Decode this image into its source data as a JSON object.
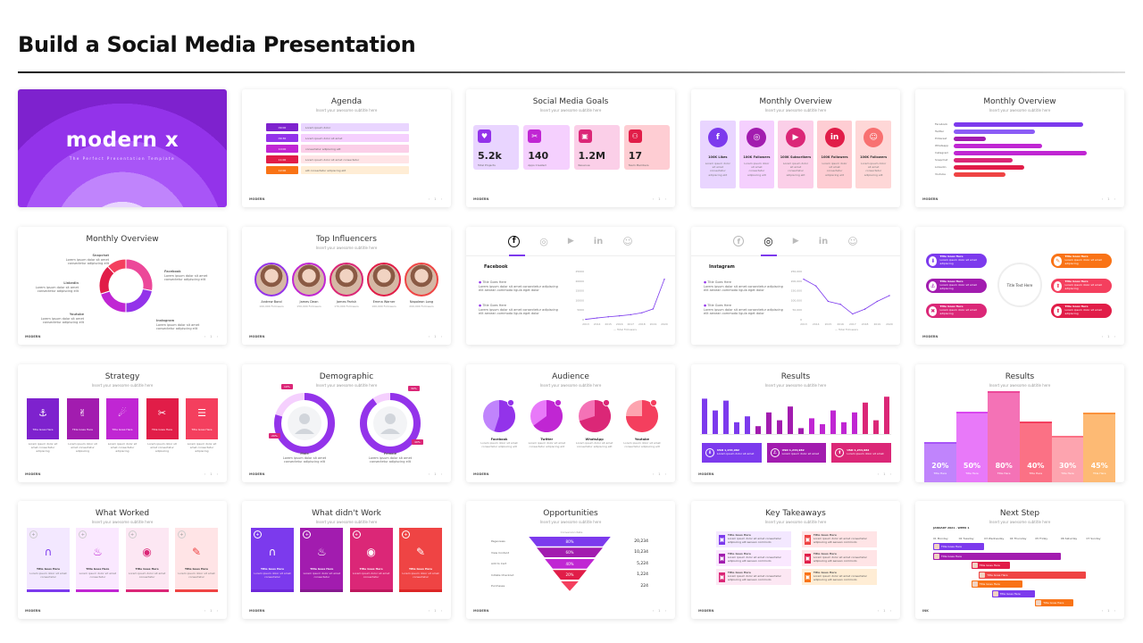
{
  "title": "Build a Social Media Presentation",
  "common": {
    "subtitle": "Insert your awesome subtitle here",
    "logo": "MODERN",
    "nav": "‹ 1 ›",
    "title_here": "Title Here",
    "title_goes_here": "Title Goes Here"
  },
  "s1": {
    "logo": "modern x",
    "tagline": "The Perfect Presentation Template"
  },
  "s2": {
    "title": "Agenda",
    "rows": [
      {
        "tag": "09:00",
        "text": "Lorem ipsum dolor"
      },
      {
        "tag": "09:30",
        "text": "Lorem ipsum dolor sit amet"
      },
      {
        "tag": "10:00",
        "text": "consectetur adipiscing elit"
      },
      {
        "tag": "11:00",
        "text": "Lorem ipsum dolor sit amet consectetur"
      },
      {
        "tag": "12:00",
        "text": "elit consectetur adipiscing elit"
      }
    ]
  },
  "s3": {
    "title": "Social Media Goals",
    "cards": [
      {
        "value": "5.2k",
        "label": "Total Projects",
        "icon": "heart-icon"
      },
      {
        "value": "140",
        "label": "Apps Created",
        "icon": "tools-icon"
      },
      {
        "value": "1.2M",
        "label": "Revenue",
        "icon": "bag-icon"
      },
      {
        "value": "17",
        "label": "Team Members",
        "icon": "team-icon"
      }
    ]
  },
  "s4": {
    "title": "Monthly Overview",
    "cols": [
      {
        "glyph": "f",
        "stat": "100K Likes",
        "icon": "facebook-icon"
      },
      {
        "glyph": "◎",
        "stat": "100K Followers",
        "icon": "instagram-icon"
      },
      {
        "glyph": "▶",
        "stat": "100K Subscribers",
        "icon": "youtube-icon"
      },
      {
        "glyph": "in",
        "stat": "100K Followers",
        "icon": "linkedin-icon"
      },
      {
        "glyph": "☺",
        "stat": "100K Followers",
        "icon": "snapchat-icon"
      }
    ],
    "desc": "Lorem ipsum dolor sit amet consectetur adipiscing elit"
  },
  "s5": {
    "title": "Monthly Overview",
    "bars": [
      {
        "label": "Facebook",
        "value": 0.88
      },
      {
        "label": "Twitter",
        "value": 0.55
      },
      {
        "label": "Pinterest",
        "value": 0.22
      },
      {
        "label": "Whatsapp",
        "value": 0.6
      },
      {
        "label": "Instagram",
        "value": 0.9
      },
      {
        "label": "Snapchat",
        "value": 0.4
      },
      {
        "label": "Linkedin",
        "value": 0.48
      },
      {
        "label": "Youtube",
        "value": 0.35
      }
    ]
  },
  "s6": {
    "title": "Monthly Overview",
    "labels": [
      "Snapchat",
      "Linkedin",
      "Youtube",
      "Facebook",
      "Instagram"
    ],
    "desc": "Lorem ipsum dolor sit amet consectetur adipiscing elit",
    "donut": [
      {
        "value": 28,
        "color": "#ec4899"
      },
      {
        "value": 22,
        "color": "#9333ea"
      },
      {
        "value": 20,
        "color": "#c026d3"
      },
      {
        "value": 18,
        "color": "#e11d48"
      },
      {
        "value": 12,
        "color": "#f43f5e"
      }
    ]
  },
  "s7": {
    "title": "Top Influencers",
    "people": [
      {
        "name": "Andrew Bond",
        "followers": "100,000 Followers"
      },
      {
        "name": "James Dean",
        "followers": "150,000 Followers"
      },
      {
        "name": "James Parish",
        "followers": "170,000 Followers"
      },
      {
        "name": "Emma Warner",
        "followers": "160,000 Followers"
      },
      {
        "name": "Napoleon Long",
        "followers": "200,000 Followers"
      }
    ]
  },
  "s8": {
    "heading": "Facebook",
    "item": "Title Goes Here",
    "desc": "Lorem ipsum dolor sit amet consectetur adipiscing elit aenean commodo ligula eget dolor",
    "legend": "Total Followers",
    "years": [
      "2013",
      "2014",
      "2015",
      "2016",
      "2017",
      "2018",
      "2019",
      "2020"
    ],
    "yticks": [
      "25000",
      "20000",
      "15000",
      "10000",
      "5000",
      "0"
    ],
    "chart_data": {
      "type": "line",
      "x": [
        "2013",
        "2014",
        "2015",
        "2016",
        "2017",
        "2018",
        "2019",
        "2020"
      ],
      "values": [
        200,
        900,
        1500,
        2000,
        2600,
        3600,
        5600,
        21000
      ],
      "ylim": [
        0,
        25000
      ]
    }
  },
  "s9": {
    "heading": "Instagram",
    "item": "Title Goes Here",
    "desc": "Lorem ipsum dolor sit amet consectetur adipiscing elit aenean commodo ligula eget dolor",
    "legend": "Total Followers",
    "years": [
      "2013",
      "2014",
      "2015",
      "2016",
      "2017",
      "2018",
      "2019",
      "2020"
    ],
    "yticks": [
      "250,000",
      "200,000",
      "150,000",
      "100,000",
      "50,000",
      "0"
    ],
    "chart_data": {
      "type": "line",
      "x": [
        "2013",
        "2014",
        "2015",
        "2016",
        "2017",
        "2018",
        "2019",
        "2020"
      ],
      "values": [
        210000,
        175000,
        95000,
        80000,
        30000,
        55000,
        95000,
        125000
      ],
      "ylim": [
        0,
        250000
      ]
    }
  },
  "s10": {
    "center": "Title Text Here",
    "pill": "Title Goes Here",
    "desc": "Lorem ipsum dolor sit amet adipiscing"
  },
  "s11": {
    "title": "Strategy",
    "desc": "Lorem ipsum dolor sit amet consectetur adipiscing"
  },
  "s12": {
    "title": "Demographic",
    "male": "Male",
    "female": "Female",
    "desc": "Lorem ipsum dolor sit amet consectetur adipiscing elit",
    "chips": [
      "10%",
      "20%",
      "30%",
      "40%"
    ]
  },
  "s13": {
    "title": "Audience",
    "pies": [
      {
        "label": "Facebook",
        "value": 55,
        "color": "#9333ea",
        "light": "#c084fc"
      },
      {
        "label": "Twitter",
        "value": 65,
        "color": "#c026d3",
        "light": "#e879f9"
      },
      {
        "label": "WhatsApp",
        "value": 70,
        "color": "#db2777",
        "light": "#f472b6"
      },
      {
        "label": "Youtube",
        "value": 75,
        "color": "#f43f5e",
        "light": "#fda4af"
      }
    ],
    "desc": "Lorem ipsum dolor sit amet consectetur adipiscing elit"
  },
  "s14": {
    "title": "Results",
    "bars": [
      0.9,
      0.6,
      0.85,
      0.3,
      0.45,
      0.2,
      0.55,
      0.35,
      0.7,
      0.15,
      0.4,
      0.25,
      0.6,
      0.3,
      0.55,
      0.8,
      0.35,
      0.95
    ],
    "cards": [
      {
        "value": "USD 1,234,982",
        "desc": "Lorem ipsum dolor sit amet"
      },
      {
        "value": "USD 1,234,982",
        "desc": "Lorem ipsum dolor sit amet"
      },
      {
        "value": "USD 1,234,982",
        "desc": "Lorem ipsum dolor sit amet"
      }
    ]
  },
  "s15": {
    "title": "Results",
    "cols": [
      {
        "pct": "20%",
        "value": 0.33
      },
      {
        "pct": "50%",
        "value": 0.58
      },
      {
        "pct": "80%",
        "value": 0.75
      },
      {
        "pct": "40%",
        "value": 0.5
      },
      {
        "pct": "30%",
        "value": 0.38
      },
      {
        "pct": "45%",
        "value": 0.57
      }
    ]
  },
  "s16": {
    "title": "What Worked",
    "desc": "Lorem ipsum dolor sit amet consectetur"
  },
  "s17": {
    "title": "What didn't Work",
    "desc": "Lorem ipsum dolor sit amet consectetur"
  },
  "s18": {
    "title": "Opportunities",
    "header": "Conversion Rate",
    "rows": [
      {
        "label": "Pageviews",
        "pct": "80%",
        "value": "20,234"
      },
      {
        "label": "View Content",
        "pct": "60%",
        "value": "10,234"
      },
      {
        "label": "Add to Cart",
        "pct": "40%",
        "value": "5,224"
      },
      {
        "label": "Initiate Checkout",
        "pct": "20%",
        "value": "1,224"
      },
      {
        "label": "Purchases",
        "pct": "",
        "value": "224"
      }
    ]
  },
  "s19": {
    "title": "Key Takeaways",
    "item": "Title Goes Here",
    "desc": "Lorem ipsum dolor sit amet consectetur adipiscing elit aenean commodo"
  },
  "s20": {
    "title": "Next Step",
    "month": "JANUARY 2021 · WEEK 1",
    "days": [
      "01 Monday",
      "02 Tuesday",
      "03 Wednesday",
      "04 Thursday",
      "05 Friday",
      "06 Saturday",
      "07 Sunday"
    ],
    "task": "Title Goes Here",
    "footer": "INK"
  }
}
